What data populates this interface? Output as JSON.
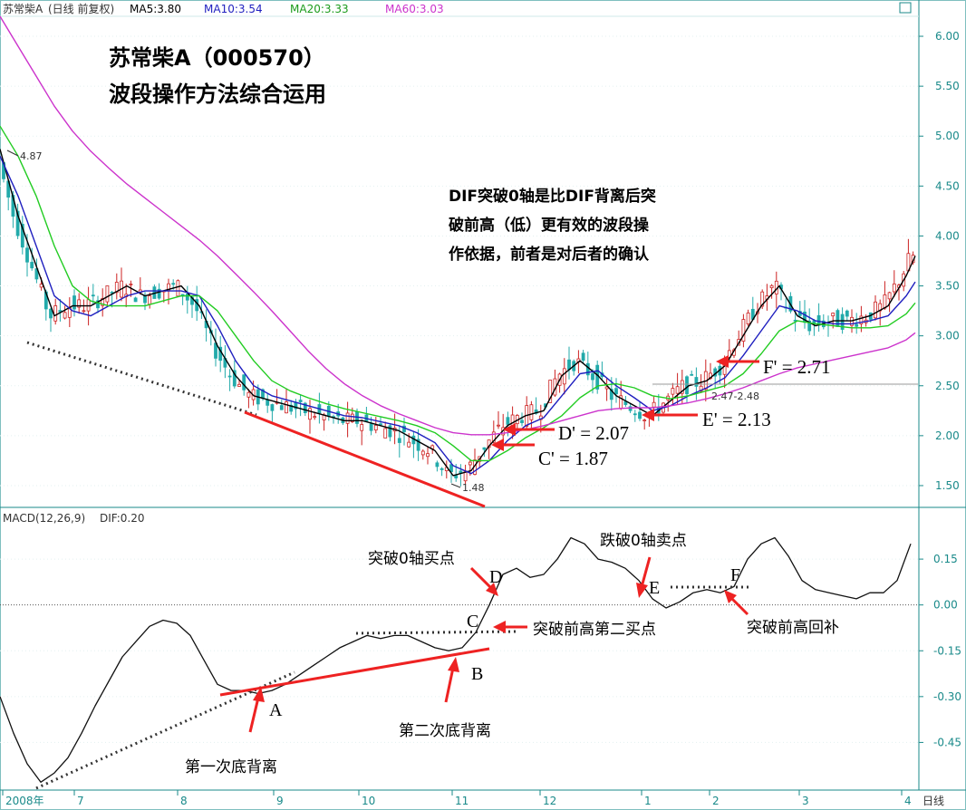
{
  "header": {
    "stock": "苏常柴A",
    "mode": "(日线 前复权)",
    "ma5": "MA5:3.80",
    "ma10": "MA10:3.54",
    "ma20": "MA20:3.33",
    "ma60": "MA60:3.03",
    "macd": "MACD(12,26,9)",
    "dif": "DIF:0.20",
    "period": "日线"
  },
  "colors": {
    "ma5": "#000000",
    "ma10": "#1f1fbf",
    "ma20": "#22cc22",
    "ma60": "#cc33cc",
    "axis": "#1a8a8a",
    "up_candle": "#cc2222",
    "down_candle": "#22aaaa",
    "annotation_red": "#ee2222"
  },
  "annotations": {
    "title_line1": "苏常柴A（000570）",
    "title_line2": "波段操作方法综合运用",
    "note_line1": "DIF突破0轴是比DIF背离后突",
    "note_line2": "破前高（低）更有效的波段操",
    "note_line3": "作依据，前者是对后者的确认",
    "high_label": "4.87",
    "low_label": "1.48",
    "c_prime": "C' = 1.87",
    "d_prime": "D' = 2.07",
    "e_prime": "E' = 2.13",
    "f_prime": "F' = 2.71",
    "range_label": "2.47-2.48",
    "pt_a": "A",
    "pt_b": "B",
    "pt_c": "C",
    "pt_d": "D",
    "pt_e": "E",
    "pt_f": "F",
    "first_div": "第一次底背离",
    "second_div": "第二次底背离",
    "zero_buy": "突破0轴买点",
    "prev_high_buy": "突破前高第二买点",
    "zero_sell": "跌破0轴卖点",
    "prev_high_cover": "突破前高回补"
  },
  "chart_data": [
    {
      "type": "line",
      "title": "",
      "series": [
        {
          "name": "MA5",
          "x": [
            0,
            20,
            40,
            60,
            80,
            100,
            120,
            140,
            160,
            180,
            200,
            220,
            240,
            260,
            280,
            300,
            320,
            340,
            360,
            380,
            400,
            420,
            440,
            460,
            480,
            500,
            520,
            540,
            560,
            580,
            600,
            620,
            640,
            660,
            680,
            700,
            720,
            740,
            760,
            780,
            800,
            820,
            840,
            860,
            880,
            900,
            920,
            940,
            960,
            980,
            1000,
            1010
          ],
          "values": [
            4.87,
            4.2,
            3.7,
            3.2,
            3.3,
            3.3,
            3.4,
            3.5,
            3.4,
            3.45,
            3.5,
            3.3,
            2.9,
            2.6,
            2.4,
            2.35,
            2.3,
            2.25,
            2.2,
            2.15,
            2.15,
            2.1,
            2.05,
            1.95,
            1.85,
            1.6,
            1.65,
            1.9,
            2.1,
            2.2,
            2.25,
            2.6,
            2.75,
            2.6,
            2.4,
            2.3,
            2.2,
            2.35,
            2.5,
            2.55,
            2.7,
            3.0,
            3.3,
            3.5,
            3.2,
            3.1,
            3.15,
            3.15,
            3.2,
            3.3,
            3.6,
            3.8
          ]
        },
        {
          "name": "MA10",
          "x": [
            0,
            20,
            40,
            60,
            80,
            100,
            120,
            140,
            160,
            180,
            200,
            220,
            240,
            260,
            280,
            300,
            320,
            340,
            360,
            380,
            400,
            420,
            440,
            460,
            480,
            500,
            520,
            540,
            560,
            580,
            600,
            620,
            640,
            660,
            680,
            700,
            720,
            740,
            760,
            780,
            800,
            820,
            840,
            860,
            880,
            900,
            920,
            940,
            960,
            980,
            1000,
            1010
          ],
          "values": [
            4.8,
            4.4,
            3.9,
            3.4,
            3.25,
            3.2,
            3.3,
            3.4,
            3.45,
            3.45,
            3.45,
            3.4,
            3.1,
            2.75,
            2.5,
            2.4,
            2.35,
            2.3,
            2.25,
            2.2,
            2.18,
            2.14,
            2.1,
            2.03,
            1.93,
            1.7,
            1.62,
            1.75,
            1.95,
            2.1,
            2.18,
            2.4,
            2.62,
            2.65,
            2.5,
            2.38,
            2.25,
            2.3,
            2.4,
            2.48,
            2.58,
            2.8,
            3.05,
            3.3,
            3.25,
            3.15,
            3.12,
            3.12,
            3.15,
            3.2,
            3.4,
            3.54
          ]
        },
        {
          "name": "MA20",
          "x": [
            0,
            20,
            40,
            60,
            80,
            100,
            120,
            140,
            160,
            180,
            200,
            220,
            240,
            260,
            280,
            300,
            320,
            340,
            360,
            380,
            400,
            420,
            440,
            460,
            480,
            500,
            520,
            540,
            560,
            580,
            600,
            620,
            640,
            660,
            680,
            700,
            720,
            740,
            760,
            780,
            800,
            820,
            840,
            860,
            880,
            900,
            920,
            940,
            960,
            980,
            1000,
            1010
          ],
          "values": [
            5.1,
            4.8,
            4.4,
            3.9,
            3.5,
            3.35,
            3.3,
            3.3,
            3.3,
            3.35,
            3.4,
            3.4,
            3.25,
            3.0,
            2.75,
            2.55,
            2.45,
            2.38,
            2.32,
            2.27,
            2.23,
            2.19,
            2.15,
            2.1,
            2.03,
            1.9,
            1.75,
            1.75,
            1.85,
            1.98,
            2.08,
            2.2,
            2.38,
            2.5,
            2.52,
            2.48,
            2.4,
            2.37,
            2.4,
            2.45,
            2.5,
            2.62,
            2.82,
            3.05,
            3.15,
            3.12,
            3.1,
            3.08,
            3.08,
            3.1,
            3.22,
            3.33
          ]
        },
        {
          "name": "MA60",
          "x": [
            0,
            20,
            40,
            60,
            80,
            100,
            120,
            140,
            160,
            180,
            200,
            220,
            240,
            260,
            280,
            300,
            320,
            340,
            360,
            380,
            400,
            420,
            440,
            460,
            480,
            500,
            520,
            540,
            560,
            580,
            600,
            620,
            640,
            660,
            680,
            700,
            720,
            740,
            760,
            780,
            800,
            820,
            840,
            860,
            880,
            900,
            920,
            940,
            960,
            980,
            1000,
            1010
          ],
          "values": [
            6.2,
            5.9,
            5.6,
            5.3,
            5.05,
            4.85,
            4.68,
            4.52,
            4.38,
            4.24,
            4.1,
            3.96,
            3.8,
            3.62,
            3.44,
            3.25,
            3.05,
            2.85,
            2.67,
            2.52,
            2.4,
            2.3,
            2.22,
            2.15,
            2.08,
            2.03,
            2.01,
            2.01,
            2.03,
            2.06,
            2.1,
            2.15,
            2.2,
            2.25,
            2.27,
            2.28,
            2.28,
            2.3,
            2.33,
            2.37,
            2.42,
            2.48,
            2.55,
            2.62,
            2.68,
            2.72,
            2.76,
            2.8,
            2.84,
            2.88,
            2.96,
            3.03
          ]
        }
      ],
      "ylim": [
        1.3,
        6.2
      ],
      "yticks": [
        "6.00",
        "5.50",
        "5.00",
        "4.50",
        "4.00",
        "3.50",
        "3.00",
        "2.50",
        "2.00",
        "1.50"
      ]
    },
    {
      "type": "line",
      "title": "",
      "series": [
        {
          "name": "DIF",
          "x": [
            0,
            15,
            30,
            45,
            60,
            75,
            90,
            105,
            120,
            135,
            150,
            165,
            180,
            195,
            210,
            225,
            240,
            255,
            270,
            285,
            300,
            315,
            330,
            345,
            360,
            375,
            390,
            405,
            420,
            435,
            450,
            465,
            480,
            495,
            510,
            525,
            540,
            555,
            570,
            585,
            600,
            615,
            630,
            645,
            660,
            675,
            690,
            705,
            720,
            735,
            750,
            765,
            780,
            795,
            810,
            825,
            840,
            855,
            870,
            885,
            900,
            915,
            930,
            945,
            960,
            975,
            990,
            1005
          ],
          "values": [
            -0.3,
            -0.42,
            -0.52,
            -0.58,
            -0.55,
            -0.5,
            -0.42,
            -0.33,
            -0.25,
            -0.17,
            -0.12,
            -0.07,
            -0.05,
            -0.06,
            -0.1,
            -0.18,
            -0.26,
            -0.28,
            -0.28,
            -0.29,
            -0.28,
            -0.26,
            -0.23,
            -0.2,
            -0.17,
            -0.14,
            -0.12,
            -0.1,
            -0.11,
            -0.1,
            -0.1,
            -0.12,
            -0.14,
            -0.15,
            -0.14,
            -0.09,
            0.0,
            0.1,
            0.12,
            0.09,
            0.1,
            0.15,
            0.22,
            0.2,
            0.15,
            0.14,
            0.12,
            0.08,
            0.02,
            -0.01,
            0.01,
            0.04,
            0.05,
            0.04,
            0.06,
            0.15,
            0.2,
            0.22,
            0.16,
            0.08,
            0.05,
            0.04,
            0.03,
            0.02,
            0.04,
            0.04,
            0.08,
            0.2
          ]
        }
      ],
      "ylim": [
        -0.6,
        0.26
      ],
      "yticks": [
        "0.15",
        "0.00",
        "-0.15",
        "-0.30",
        "-0.45"
      ],
      "xticks": [
        "2008年",
        "7",
        "8",
        "9",
        "10",
        "11",
        "12",
        "1",
        "2",
        "3",
        "4"
      ]
    }
  ]
}
